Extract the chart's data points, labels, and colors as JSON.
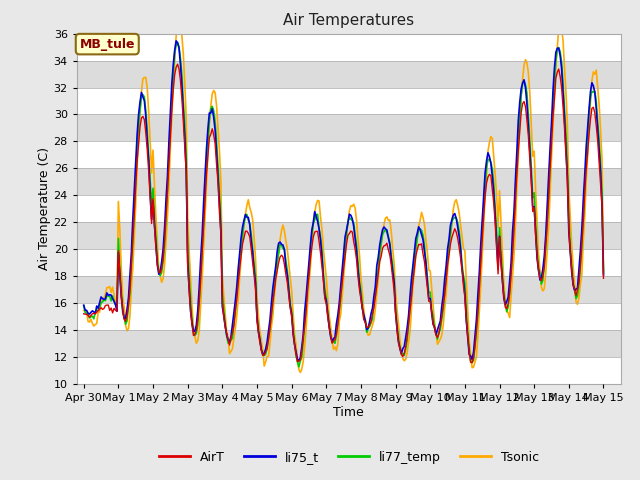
{
  "title": "Air Temperatures",
  "xlabel": "Time",
  "ylabel": "Air Temperature (C)",
  "ylim": [
    10,
    36
  ],
  "xlim_days": [
    -0.2,
    15.5
  ],
  "yticks": [
    10,
    12,
    14,
    16,
    18,
    20,
    22,
    24,
    26,
    28,
    30,
    32,
    34,
    36
  ],
  "xtick_labels": [
    "Apr 30",
    "May 1",
    "May 2",
    "May 3",
    "May 4",
    "May 5",
    "May 6",
    "May 7",
    "May 8",
    "May 9",
    "May 10",
    "May 11",
    "May 12",
    "May 13",
    "May 14",
    "May 15"
  ],
  "xtick_positions": [
    0,
    1,
    2,
    3,
    4,
    5,
    6,
    7,
    8,
    9,
    10,
    11,
    12,
    13,
    14,
    15
  ],
  "label_box_text": "MB_tule",
  "colors": {
    "AirT": "#dd0000",
    "li75_t": "#0000dd",
    "li77_temp": "#00cc00",
    "Tsonic": "#ffaa00"
  },
  "background_color": "#dcdcdc",
  "grid_color": "#ffffff",
  "fig_facecolor": "#e8e8e8",
  "daily_maxs": [
    16.5,
    31.5,
    35.5,
    30.5,
    22.5,
    20.5,
    22.5,
    22.5,
    21.5,
    21.5,
    22.5,
    27.0,
    32.5,
    35.0,
    32.0,
    20.0
  ],
  "daily_mins": [
    15.0,
    14.5,
    18.0,
    13.5,
    13.0,
    12.0,
    11.5,
    13.0,
    14.0,
    12.0,
    13.5,
    11.5,
    15.5,
    17.5,
    16.5,
    17.0
  ],
  "peak_hour": 14,
  "trough_hour": 5
}
